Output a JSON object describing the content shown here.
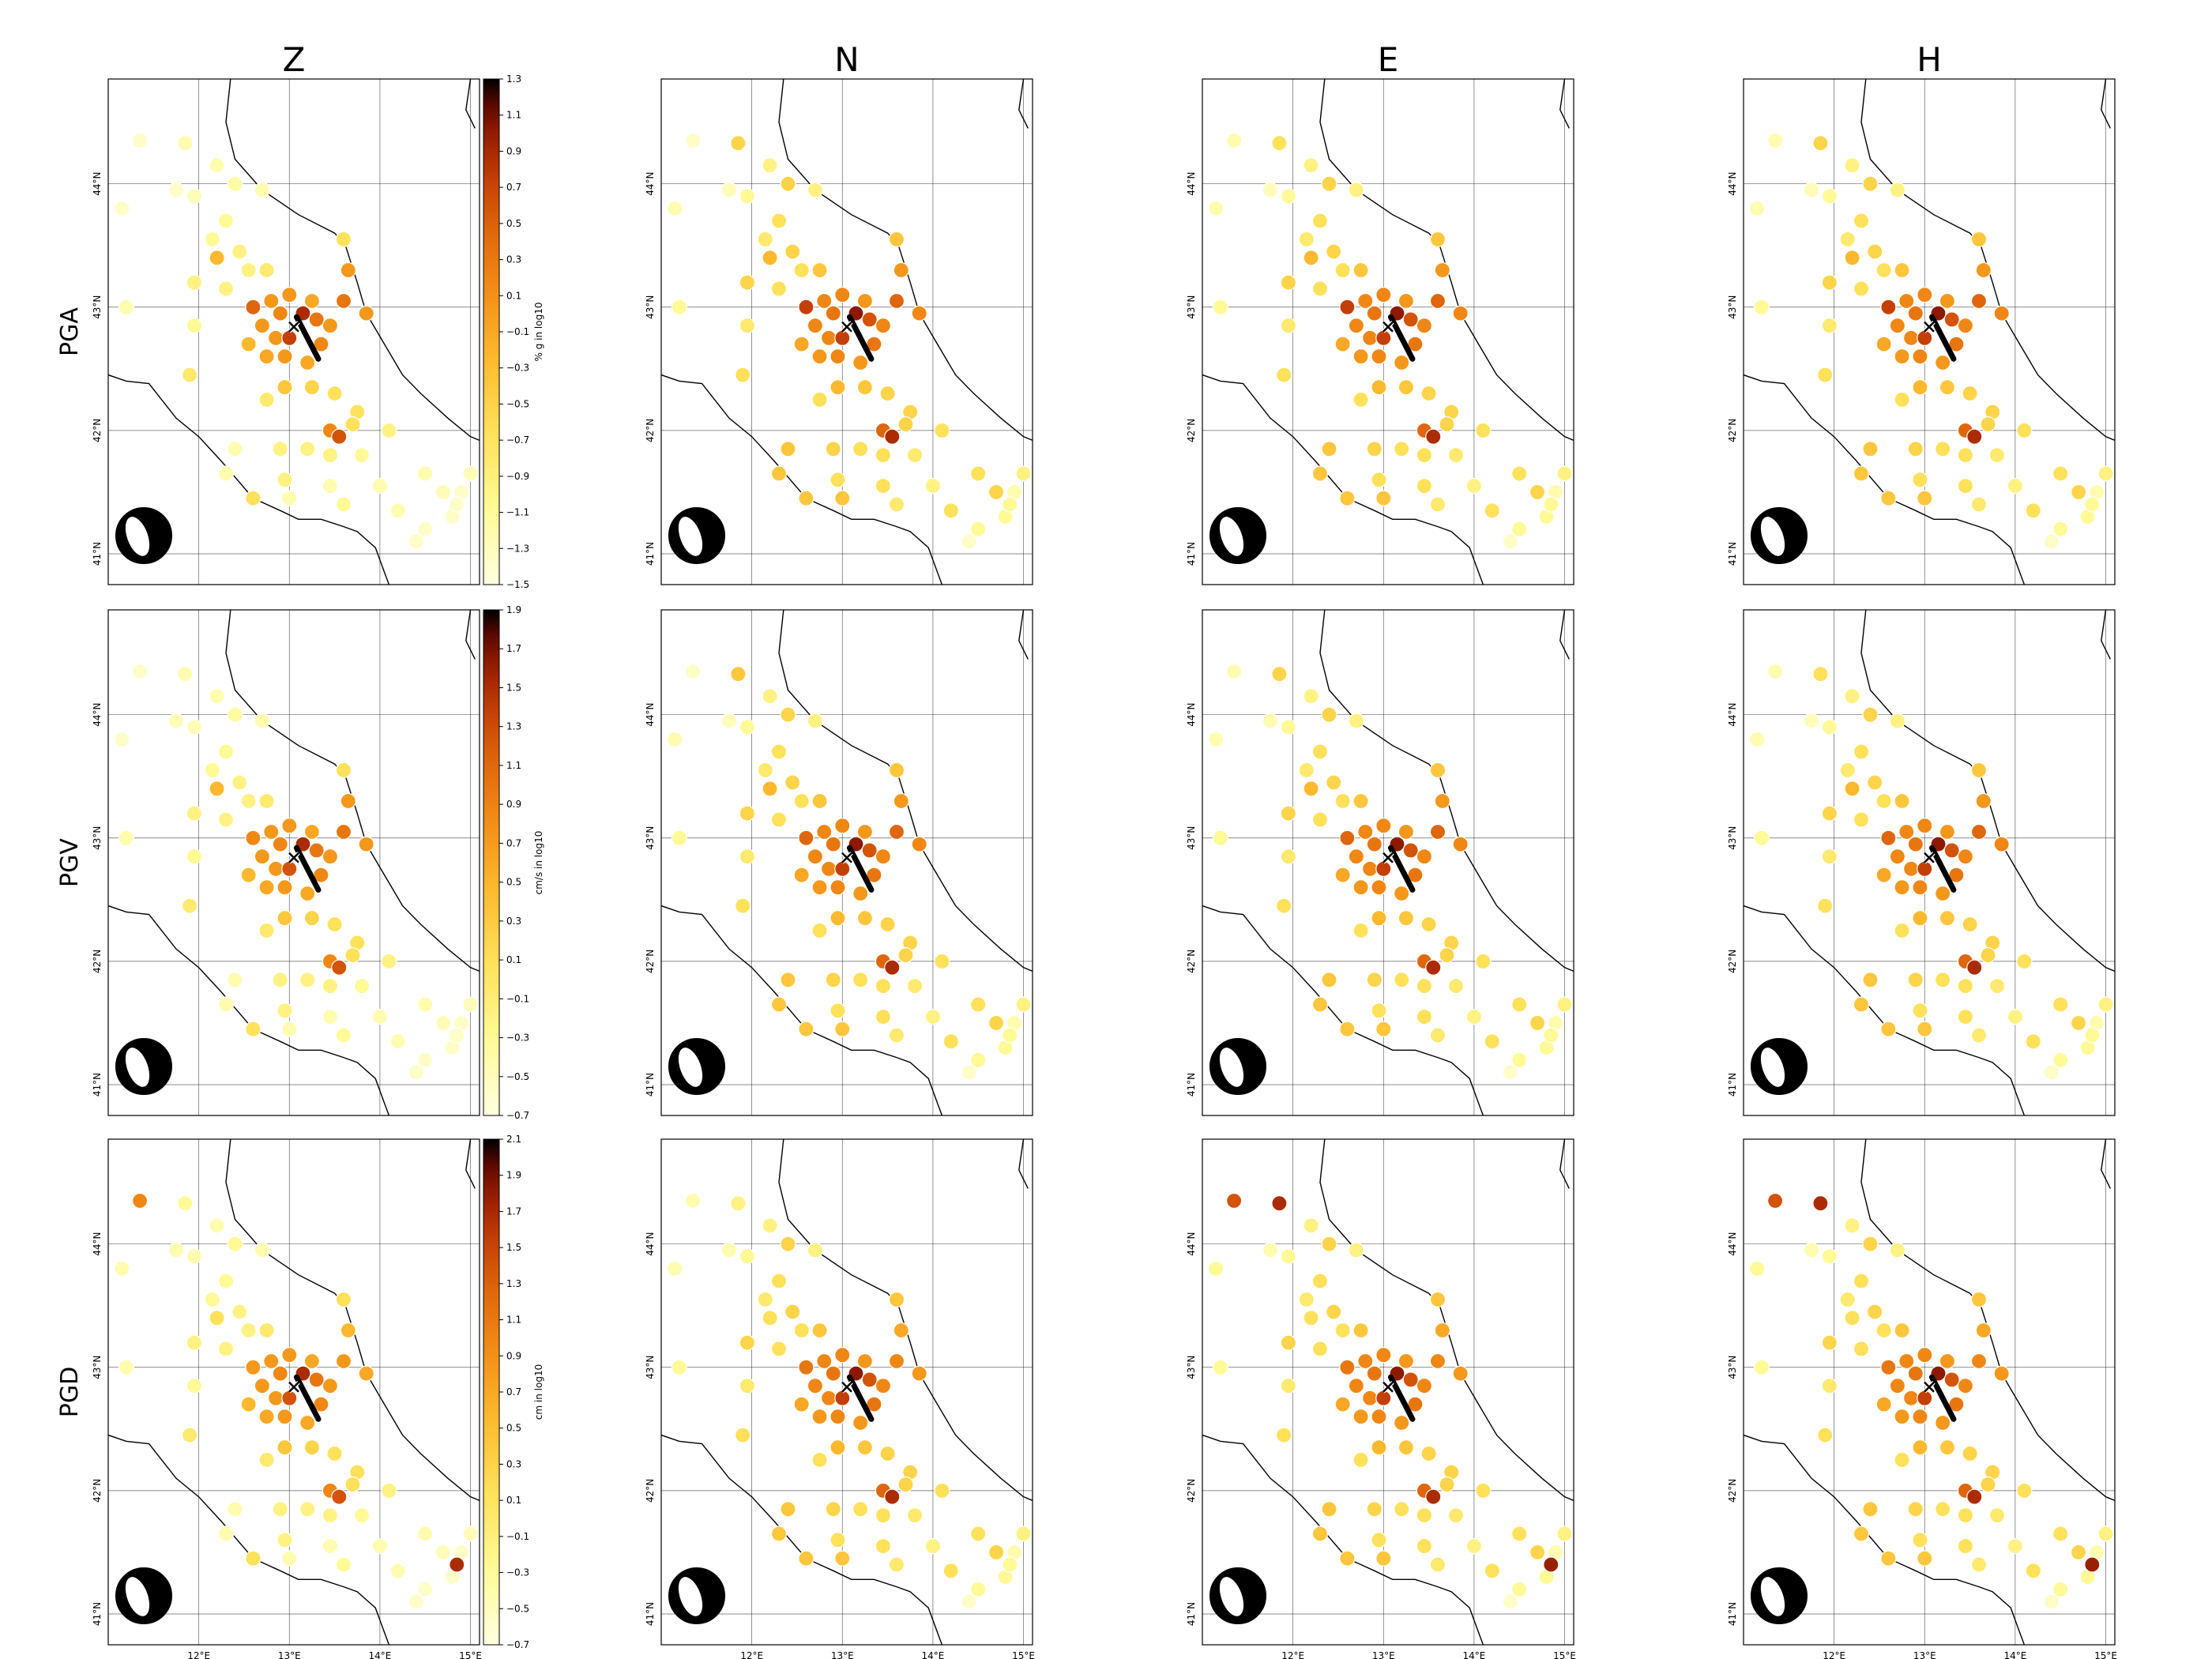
{
  "columns": [
    "Z",
    "N",
    "E",
    "H"
  ],
  "rows": [
    {
      "name": "PGA",
      "colorbar_label": "% g in log10",
      "colorbar_ticks": [
        "1.3",
        "1.1",
        "0.9",
        "0.7",
        "0.5",
        "0.3",
        "0.1",
        "−0.1",
        "−0.3",
        "−0.5",
        "−0.7",
        "−0.9",
        "−1.1",
        "−1.3",
        "−1.5"
      ],
      "cmin": -1.5,
      "cmax": 1.3
    },
    {
      "name": "PGV",
      "colorbar_label": "cm/s in log10",
      "colorbar_ticks": [
        "1.9",
        "1.7",
        "1.5",
        "1.3",
        "1.1",
        "0.9",
        "0.7",
        "0.5",
        "0.3",
        "0.1",
        "−0.1",
        "−0.3",
        "−0.5",
        "−0.7"
      ],
      "cmin": -0.7,
      "cmax": 1.9
    },
    {
      "name": "PGD",
      "colorbar_label": "cm in log10",
      "colorbar_ticks": [
        "2.1",
        "1.9",
        "1.7",
        "1.5",
        "1.3",
        "1.1",
        "0.9",
        "0.7",
        "0.5",
        "0.3",
        "0.1",
        "−0.1",
        "−0.3",
        "−0.5",
        "−0.7"
      ],
      "cmin": -0.7,
      "cmax": 2.1
    }
  ],
  "lat_labels": [
    "44°N",
    "43°N",
    "42°N",
    "41°N"
  ],
  "lon_labels": [
    "12°E",
    "13°E",
    "14°E",
    "15°E"
  ],
  "map_extent": {
    "lon": [
      11.0,
      15.1
    ],
    "lat": [
      40.75,
      44.85
    ]
  },
  "gridlines": {
    "lon": [
      12,
      13,
      14,
      15
    ],
    "lat": [
      41,
      42,
      43,
      44
    ]
  },
  "colormap": "afmhot_r",
  "colors": {
    "coast": "#000000",
    "grid": "#000000",
    "fault": "#000000"
  },
  "epicenter": {
    "lon": 13.05,
    "lat": 42.84,
    "marker": "x"
  },
  "fault_trace": [
    [
      13.08,
      42.92
    ],
    [
      13.32,
      42.58
    ]
  ],
  "beachball_icon": "focal-mechanism-normal",
  "stations": [
    {
      "lon": 11.35,
      "lat": 44.35,
      "v": [
        0.05,
        0.05,
        0.1,
        0.1,
        0.05,
        0.05,
        0.1,
        0.1,
        0.6,
        0.1,
        0.75,
        0.75
      ]
    },
    {
      "lon": 11.85,
      "lat": 44.33,
      "v": [
        0.1,
        0.35,
        0.3,
        0.35,
        0.1,
        0.4,
        0.35,
        0.3,
        0.15,
        0.2,
        0.85,
        0.85
      ]
    },
    {
      "lon": 11.15,
      "lat": 43.8,
      "v": [
        0.05,
        0.1,
        0.1,
        0.1,
        0.05,
        0.1,
        0.1,
        0.1,
        0.1,
        0.1,
        0.15,
        0.15
      ]
    },
    {
      "lon": 11.75,
      "lat": 43.95,
      "v": [
        0.05,
        0.08,
        0.08,
        0.08,
        0.08,
        0.08,
        0.1,
        0.08,
        0.1,
        0.1,
        0.1,
        0.1
      ]
    },
    {
      "lon": 11.95,
      "lat": 43.9,
      "v": [
        0.08,
        0.15,
        0.15,
        0.15,
        0.08,
        0.15,
        0.15,
        0.15,
        0.1,
        0.15,
        0.15,
        0.15
      ]
    },
    {
      "lon": 12.2,
      "lat": 44.15,
      "v": [
        0.1,
        0.2,
        0.2,
        0.2,
        0.1,
        0.2,
        0.2,
        0.2,
        0.1,
        0.2,
        0.2,
        0.2
      ]
    },
    {
      "lon": 12.4,
      "lat": 44.0,
      "v": [
        0.12,
        0.35,
        0.35,
        0.35,
        0.12,
        0.35,
        0.35,
        0.35,
        0.15,
        0.35,
        0.35,
        0.35
      ]
    },
    {
      "lon": 12.7,
      "lat": 43.95,
      "v": [
        0.1,
        0.2,
        0.2,
        0.2,
        0.1,
        0.2,
        0.2,
        0.2,
        0.1,
        0.2,
        0.2,
        0.2
      ]
    },
    {
      "lon": 12.3,
      "lat": 43.7,
      "v": [
        0.15,
        0.3,
        0.3,
        0.3,
        0.15,
        0.3,
        0.3,
        0.3,
        0.15,
        0.3,
        0.3,
        0.3
      ]
    },
    {
      "lon": 12.15,
      "lat": 43.55,
      "v": [
        0.15,
        0.25,
        0.25,
        0.25,
        0.15,
        0.25,
        0.25,
        0.25,
        0.15,
        0.25,
        0.25,
        0.25
      ]
    },
    {
      "lon": 12.45,
      "lat": 43.45,
      "v": [
        0.2,
        0.35,
        0.35,
        0.35,
        0.2,
        0.35,
        0.35,
        0.35,
        0.2,
        0.35,
        0.35,
        0.35
      ]
    },
    {
      "lon": 12.2,
      "lat": 43.4,
      "v": [
        0.45,
        0.45,
        0.45,
        0.45,
        0.45,
        0.45,
        0.45,
        0.45,
        0.3,
        0.3,
        0.3,
        0.3
      ]
    },
    {
      "lon": 12.55,
      "lat": 43.3,
      "v": [
        0.2,
        0.3,
        0.3,
        0.3,
        0.2,
        0.3,
        0.3,
        0.3,
        0.2,
        0.3,
        0.3,
        0.3
      ]
    },
    {
      "lon": 12.75,
      "lat": 43.3,
      "v": [
        0.25,
        0.4,
        0.4,
        0.4,
        0.25,
        0.4,
        0.4,
        0.4,
        0.25,
        0.4,
        0.4,
        0.4
      ]
    },
    {
      "lon": 11.95,
      "lat": 43.2,
      "v": [
        0.2,
        0.35,
        0.35,
        0.35,
        0.2,
        0.35,
        0.35,
        0.35,
        0.2,
        0.35,
        0.35,
        0.35
      ]
    },
    {
      "lon": 12.3,
      "lat": 43.15,
      "v": [
        0.2,
        0.3,
        0.3,
        0.3,
        0.2,
        0.3,
        0.3,
        0.3,
        0.2,
        0.3,
        0.3,
        0.3
      ]
    },
    {
      "lon": 11.2,
      "lat": 43.0,
      "v": [
        0.1,
        0.15,
        0.15,
        0.15,
        0.1,
        0.15,
        0.15,
        0.15,
        0.1,
        0.15,
        0.15,
        0.15
      ]
    },
    {
      "lon": 11.95,
      "lat": 42.85,
      "v": [
        0.15,
        0.25,
        0.25,
        0.25,
        0.15,
        0.25,
        0.25,
        0.25,
        0.15,
        0.25,
        0.25,
        0.25
      ]
    },
    {
      "lon": 11.9,
      "lat": 42.45,
      "v": [
        0.25,
        0.3,
        0.3,
        0.3,
        0.25,
        0.3,
        0.3,
        0.3,
        0.25,
        0.3,
        0.3,
        0.3
      ]
    },
    {
      "lon": 12.6,
      "lat": 43.0,
      "v": [
        0.7,
        0.8,
        0.8,
        0.8,
        0.6,
        0.7,
        0.7,
        0.7,
        0.55,
        0.65,
        0.65,
        0.65
      ]
    },
    {
      "lon": 12.8,
      "lat": 43.05,
      "v": [
        0.55,
        0.6,
        0.6,
        0.6,
        0.55,
        0.6,
        0.6,
        0.6,
        0.55,
        0.6,
        0.6,
        0.6
      ]
    },
    {
      "lon": 13.0,
      "lat": 43.1,
      "v": [
        0.55,
        0.6,
        0.6,
        0.6,
        0.55,
        0.6,
        0.6,
        0.6,
        0.55,
        0.6,
        0.6,
        0.6
      ]
    },
    {
      "lon": 13.25,
      "lat": 43.05,
      "v": [
        0.5,
        0.55,
        0.55,
        0.55,
        0.5,
        0.55,
        0.55,
        0.55,
        0.5,
        0.55,
        0.55,
        0.55
      ]
    },
    {
      "lon": 12.7,
      "lat": 42.85,
      "v": [
        0.55,
        0.6,
        0.6,
        0.6,
        0.55,
        0.6,
        0.6,
        0.6,
        0.55,
        0.6,
        0.6,
        0.6
      ]
    },
    {
      "lon": 12.9,
      "lat": 42.95,
      "v": [
        0.6,
        0.65,
        0.65,
        0.65,
        0.6,
        0.65,
        0.65,
        0.65,
        0.6,
        0.65,
        0.65,
        0.65
      ]
    },
    {
      "lon": 13.15,
      "lat": 42.95,
      "v": [
        0.85,
        0.9,
        0.9,
        0.9,
        0.85,
        0.9,
        0.9,
        0.9,
        0.85,
        0.9,
        0.9,
        0.9
      ]
    },
    {
      "lon": 13.3,
      "lat": 42.9,
      "v": [
        0.65,
        0.75,
        0.75,
        0.75,
        0.65,
        0.75,
        0.75,
        0.75,
        0.65,
        0.75,
        0.75,
        0.75
      ]
    },
    {
      "lon": 13.45,
      "lat": 42.85,
      "v": [
        0.55,
        0.6,
        0.6,
        0.6,
        0.55,
        0.6,
        0.6,
        0.6,
        0.55,
        0.6,
        0.6,
        0.6
      ]
    },
    {
      "lon": 12.85,
      "lat": 42.75,
      "v": [
        0.55,
        0.6,
        0.6,
        0.6,
        0.55,
        0.6,
        0.6,
        0.6,
        0.55,
        0.6,
        0.6,
        0.6
      ]
    },
    {
      "lon": 13.0,
      "lat": 42.75,
      "v": [
        0.8,
        0.8,
        0.8,
        0.8,
        0.75,
        0.8,
        0.8,
        0.8,
        0.75,
        0.8,
        0.8,
        0.8
      ]
    },
    {
      "lon": 13.35,
      "lat": 42.7,
      "v": [
        0.6,
        0.65,
        0.65,
        0.65,
        0.6,
        0.65,
        0.65,
        0.65,
        0.6,
        0.65,
        0.65,
        0.65
      ]
    },
    {
      "lon": 12.75,
      "lat": 42.6,
      "v": [
        0.5,
        0.55,
        0.55,
        0.55,
        0.5,
        0.55,
        0.55,
        0.55,
        0.5,
        0.55,
        0.55,
        0.55
      ]
    },
    {
      "lon": 12.95,
      "lat": 42.6,
      "v": [
        0.55,
        0.6,
        0.6,
        0.6,
        0.55,
        0.6,
        0.6,
        0.6,
        0.55,
        0.6,
        0.6,
        0.6
      ]
    },
    {
      "lon": 13.2,
      "lat": 42.55,
      "v": [
        0.5,
        0.55,
        0.55,
        0.55,
        0.5,
        0.55,
        0.55,
        0.55,
        0.5,
        0.55,
        0.55,
        0.55
      ]
    },
    {
      "lon": 12.55,
      "lat": 42.7,
      "v": [
        0.45,
        0.5,
        0.5,
        0.5,
        0.45,
        0.5,
        0.5,
        0.5,
        0.45,
        0.5,
        0.5,
        0.5
      ]
    },
    {
      "lon": 13.6,
      "lat": 43.55,
      "v": [
        0.3,
        0.4,
        0.4,
        0.4,
        0.3,
        0.4,
        0.4,
        0.4,
        0.3,
        0.4,
        0.4,
        0.4
      ]
    },
    {
      "lon": 13.65,
      "lat": 43.3,
      "v": [
        0.55,
        0.55,
        0.55,
        0.55,
        0.55,
        0.55,
        0.55,
        0.55,
        0.45,
        0.5,
        0.5,
        0.5
      ]
    },
    {
      "lon": 13.6,
      "lat": 43.05,
      "v": [
        0.65,
        0.7,
        0.7,
        0.7,
        0.65,
        0.7,
        0.7,
        0.7,
        0.55,
        0.6,
        0.6,
        0.6
      ]
    },
    {
      "lon": 13.85,
      "lat": 42.95,
      "v": [
        0.55,
        0.6,
        0.6,
        0.6,
        0.55,
        0.6,
        0.6,
        0.6,
        0.5,
        0.55,
        0.55,
        0.55
      ]
    },
    {
      "lon": 12.95,
      "lat": 42.35,
      "v": [
        0.4,
        0.45,
        0.45,
        0.45,
        0.4,
        0.45,
        0.45,
        0.45,
        0.4,
        0.45,
        0.45,
        0.45
      ]
    },
    {
      "lon": 13.25,
      "lat": 42.35,
      "v": [
        0.35,
        0.4,
        0.4,
        0.4,
        0.35,
        0.4,
        0.4,
        0.4,
        0.35,
        0.4,
        0.4,
        0.4
      ]
    },
    {
      "lon": 13.5,
      "lat": 42.3,
      "v": [
        0.3,
        0.35,
        0.35,
        0.35,
        0.3,
        0.35,
        0.35,
        0.35,
        0.3,
        0.35,
        0.35,
        0.35
      ]
    },
    {
      "lon": 13.75,
      "lat": 42.15,
      "v": [
        0.3,
        0.35,
        0.35,
        0.35,
        0.3,
        0.35,
        0.35,
        0.35,
        0.3,
        0.35,
        0.35,
        0.35
      ]
    },
    {
      "lon": 12.75,
      "lat": 42.25,
      "v": [
        0.25,
        0.3,
        0.3,
        0.3,
        0.25,
        0.3,
        0.3,
        0.3,
        0.25,
        0.3,
        0.3,
        0.3
      ]
    },
    {
      "lon": 13.45,
      "lat": 42.0,
      "v": [
        0.6,
        0.7,
        0.7,
        0.7,
        0.6,
        0.7,
        0.7,
        0.7,
        0.6,
        0.7,
        0.7,
        0.7
      ]
    },
    {
      "lon": 13.55,
      "lat": 41.95,
      "v": [
        0.75,
        0.85,
        0.85,
        0.85,
        0.75,
        0.85,
        0.85,
        0.85,
        0.75,
        0.85,
        0.85,
        0.85
      ]
    },
    {
      "lon": 13.7,
      "lat": 42.05,
      "v": [
        0.3,
        0.35,
        0.35,
        0.35,
        0.3,
        0.35,
        0.35,
        0.35,
        0.3,
        0.35,
        0.35,
        0.35
      ]
    },
    {
      "lon": 14.1,
      "lat": 42.0,
      "v": [
        0.2,
        0.3,
        0.3,
        0.3,
        0.2,
        0.3,
        0.3,
        0.3,
        0.2,
        0.3,
        0.3,
        0.3
      ]
    },
    {
      "lon": 12.9,
      "lat": 41.85,
      "v": [
        0.2,
        0.35,
        0.35,
        0.35,
        0.2,
        0.35,
        0.35,
        0.35,
        0.2,
        0.35,
        0.35,
        0.35
      ]
    },
    {
      "lon": 13.2,
      "lat": 41.85,
      "v": [
        0.2,
        0.3,
        0.3,
        0.3,
        0.2,
        0.3,
        0.3,
        0.3,
        0.2,
        0.3,
        0.3,
        0.3
      ]
    },
    {
      "lon": 13.45,
      "lat": 41.8,
      "v": [
        0.2,
        0.3,
        0.3,
        0.3,
        0.2,
        0.3,
        0.3,
        0.3,
        0.2,
        0.3,
        0.3,
        0.3
      ]
    },
    {
      "lon": 13.8,
      "lat": 41.8,
      "v": [
        0.15,
        0.25,
        0.25,
        0.25,
        0.15,
        0.25,
        0.25,
        0.25,
        0.15,
        0.25,
        0.25,
        0.25
      ]
    },
    {
      "lon": 12.4,
      "lat": 41.85,
      "v": [
        0.1,
        0.4,
        0.4,
        0.4,
        0.1,
        0.4,
        0.4,
        0.4,
        0.1,
        0.4,
        0.4,
        0.4
      ]
    },
    {
      "lon": 12.95,
      "lat": 41.6,
      "v": [
        0.2,
        0.3,
        0.3,
        0.3,
        0.2,
        0.3,
        0.3,
        0.3,
        0.2,
        0.3,
        0.3,
        0.3
      ]
    },
    {
      "lon": 12.3,
      "lat": 41.65,
      "v": [
        0.1,
        0.4,
        0.4,
        0.4,
        0.1,
        0.4,
        0.4,
        0.4,
        0.1,
        0.4,
        0.4,
        0.4
      ]
    },
    {
      "lon": 12.6,
      "lat": 41.45,
      "v": [
        0.3,
        0.4,
        0.4,
        0.4,
        0.3,
        0.4,
        0.4,
        0.4,
        0.3,
        0.4,
        0.4,
        0.4
      ]
    },
    {
      "lon": 13.0,
      "lat": 41.45,
      "v": [
        0.1,
        0.4,
        0.4,
        0.4,
        0.1,
        0.4,
        0.4,
        0.4,
        0.1,
        0.4,
        0.4,
        0.4
      ]
    },
    {
      "lon": 13.45,
      "lat": 41.55,
      "v": [
        0.1,
        0.3,
        0.3,
        0.3,
        0.1,
        0.3,
        0.3,
        0.3,
        0.1,
        0.3,
        0.3,
        0.3
      ]
    },
    {
      "lon": 13.6,
      "lat": 41.4,
      "v": [
        0.15,
        0.25,
        0.25,
        0.25,
        0.15,
        0.25,
        0.25,
        0.25,
        0.15,
        0.25,
        0.25,
        0.25
      ]
    },
    {
      "lon": 14.0,
      "lat": 41.55,
      "v": [
        0.1,
        0.2,
        0.2,
        0.2,
        0.1,
        0.2,
        0.2,
        0.2,
        0.1,
        0.2,
        0.2,
        0.2
      ]
    },
    {
      "lon": 14.5,
      "lat": 41.65,
      "v": [
        0.1,
        0.3,
        0.3,
        0.3,
        0.1,
        0.3,
        0.3,
        0.3,
        0.1,
        0.3,
        0.3,
        0.3
      ]
    },
    {
      "lon": 14.7,
      "lat": 41.5,
      "v": [
        0.08,
        0.35,
        0.35,
        0.35,
        0.08,
        0.35,
        0.35,
        0.35,
        0.08,
        0.35,
        0.35,
        0.35
      ]
    },
    {
      "lon": 15.0,
      "lat": 41.65,
      "v": [
        0.08,
        0.2,
        0.2,
        0.2,
        0.08,
        0.2,
        0.2,
        0.2,
        0.08,
        0.2,
        0.2,
        0.2
      ]
    },
    {
      "lon": 14.9,
      "lat": 41.5,
      "v": [
        0.05,
        0.1,
        0.1,
        0.1,
        0.05,
        0.1,
        0.1,
        0.1,
        0.05,
        0.1,
        0.1,
        0.1
      ]
    },
    {
      "lon": 14.2,
      "lat": 41.35,
      "v": [
        0.1,
        0.3,
        0.3,
        0.3,
        0.1,
        0.3,
        0.3,
        0.3,
        0.1,
        0.3,
        0.3,
        0.3
      ]
    },
    {
      "lon": 14.5,
      "lat": 41.2,
      "v": [
        0.05,
        0.15,
        0.15,
        0.15,
        0.05,
        0.15,
        0.15,
        0.15,
        0.05,
        0.15,
        0.15,
        0.15
      ]
    },
    {
      "lon": 14.8,
      "lat": 41.3,
      "v": [
        0.05,
        0.15,
        0.15,
        0.15,
        0.05,
        0.15,
        0.15,
        0.15,
        0.05,
        0.15,
        0.15,
        0.15
      ]
    },
    {
      "lon": 14.85,
      "lat": 41.4,
      "v": [
        0.05,
        0.15,
        0.15,
        0.15,
        0.05,
        0.15,
        0.15,
        0.15,
        0.85,
        0.15,
        0.88,
        0.88
      ]
    },
    {
      "lon": 14.4,
      "lat": 41.1,
      "v": [
        0.05,
        0.05,
        0.05,
        0.05,
        0.05,
        0.05,
        0.05,
        0.05,
        0.05,
        0.05,
        0.05,
        0.05
      ]
    }
  ]
}
